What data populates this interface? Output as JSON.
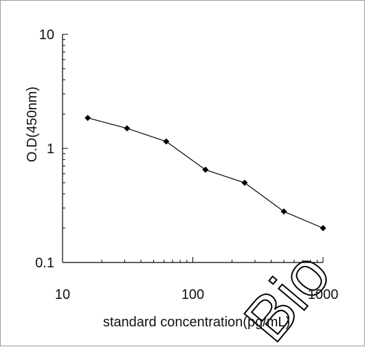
{
  "chart_data": {
    "type": "line",
    "xlabel": "standard concentration(pg/mL)",
    "ylabel": "O.D(450nm)",
    "x_scale": "log",
    "y_scale": "log",
    "xlim": [
      10,
      1000
    ],
    "ylim": [
      0.1,
      10
    ],
    "x_ticks": [
      "10",
      "100",
      "1000"
    ],
    "y_ticks": [
      "0.1",
      "1",
      "10"
    ],
    "grid": false,
    "series": [
      {
        "x": [
          15.6,
          31.25,
          62.5,
          125,
          250,
          500,
          1000
        ],
        "y": [
          1.85,
          1.5,
          1.15,
          0.65,
          0.5,
          0.28,
          0.2
        ],
        "color": "#000000",
        "marker": "diamond"
      }
    ],
    "watermark": "Bio"
  }
}
